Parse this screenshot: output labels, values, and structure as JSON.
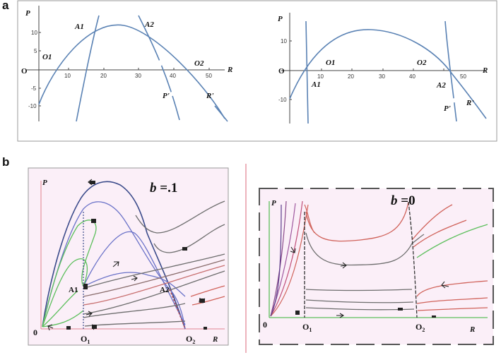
{
  "panel_a": {
    "letter": "a",
    "left": {
      "y_axis": "P",
      "x_axis": "R",
      "origin": "O",
      "y_ticks": [
        "10",
        "5",
        "-5",
        "-10"
      ],
      "x_ticks": [
        "10",
        "20",
        "30",
        "40",
        "50"
      ],
      "points": {
        "A1": "A1",
        "A2": "A2",
        "O1": "O1",
        "O2": "O2"
      },
      "curves": {
        "p_null": "P'",
        "r_null": "R'"
      }
    },
    "right": {
      "y_axis": "P",
      "x_axis": "R",
      "origin": "O",
      "y_ticks": [
        "10",
        "-10"
      ],
      "x_ticks": [
        "10",
        "20",
        "30",
        "40",
        "50"
      ],
      "points": {
        "A1": "A1",
        "A2": "A2",
        "O1": "O1",
        "O2": "O2"
      },
      "curves": {
        "p_null": "P'",
        "r_null": "R'"
      }
    }
  },
  "panel_b": {
    "letter": "b",
    "left": {
      "title_var": "b",
      "title_val": " =.1",
      "y_axis": "P",
      "x_axis": "R",
      "origin": "0",
      "O1": "O",
      "O1_sub": "1",
      "O2": "O",
      "O2_sub": "2",
      "A1": "A1",
      "A2": "A2"
    },
    "right": {
      "title_var": "b",
      "title_val": " =0",
      "y_axis": "P",
      "x_axis": "R",
      "origin": "0",
      "O1": "O",
      "O1_sub": "1",
      "O2": "O",
      "O2_sub": "2"
    }
  },
  "colors": {
    "curve_blue": "#5a82b4",
    "grey_traj": "#6d6d6d",
    "green_traj": "#5cbf5c",
    "blue_traj": "#6a72c8",
    "red_traj": "#d0625a",
    "pink_axis": "#e79aa6",
    "plot_bg": "#fbeff8"
  }
}
